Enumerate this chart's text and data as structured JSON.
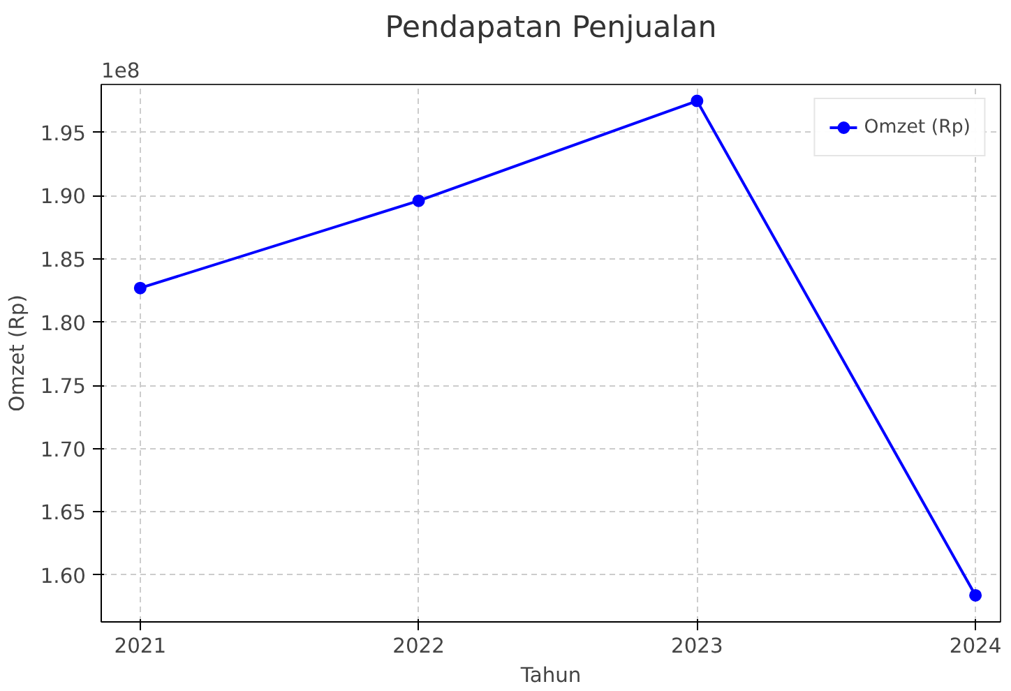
{
  "chart_data": {
    "type": "line",
    "title": "Pendapatan Penjualan",
    "xlabel": "Tahun",
    "ylabel": "Omzet (Rp)",
    "x": [
      2021,
      2022,
      2023,
      2024
    ],
    "series": [
      {
        "name": "Omzet (Rp)",
        "color": "#0000ff",
        "values": [
          1.827,
          1.896,
          1.975,
          1.584
        ]
      }
    ],
    "xlim": [
      2020.86,
      2024.09
    ],
    "xticks": [
      2021,
      2022,
      2023,
      2024
    ],
    "ylim": [
      1.563,
      1.988
    ],
    "yticks": [
      {
        "value": 1.6,
        "label": "1.60"
      },
      {
        "value": 1.65,
        "label": "1.65"
      },
      {
        "value": 1.7,
        "label": "1.70"
      },
      {
        "value": 1.75,
        "label": "1.75"
      },
      {
        "value": 1.8,
        "label": "1.80"
      },
      {
        "value": 1.85,
        "label": "1.85"
      },
      {
        "value": 1.9,
        "label": "1.90"
      },
      {
        "value": 1.95,
        "label": "1.95"
      }
    ],
    "annotations": [
      "1e8"
    ],
    "grid": true,
    "legend": "top right",
    "marker": "circle",
    "line_style": "solid"
  }
}
